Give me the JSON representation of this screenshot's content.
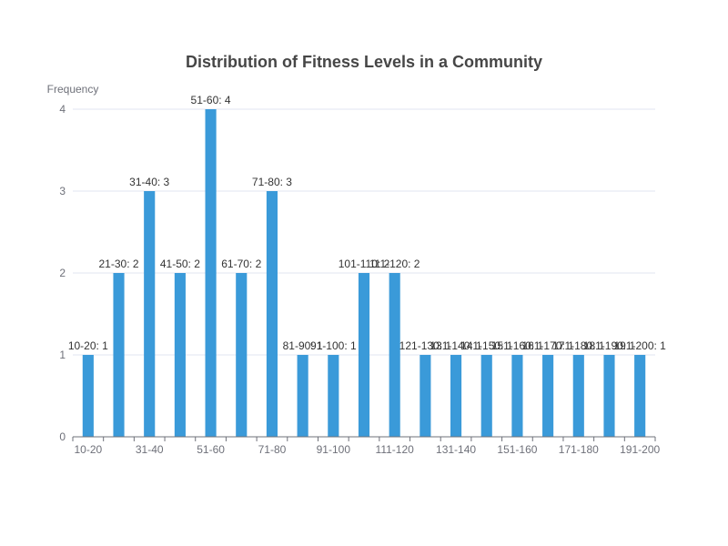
{
  "chart_data": {
    "type": "bar",
    "title": "Distribution of Fitness Levels in a Community",
    "xlabel": "",
    "ylabel": "Frequency",
    "ylim": [
      0,
      4
    ],
    "yticks": [
      0,
      1,
      2,
      3,
      4
    ],
    "grid": true,
    "bar_color": "#3a9ad9",
    "categories": [
      "10-20",
      "21-30",
      "31-40",
      "41-50",
      "51-60",
      "61-70",
      "71-80",
      "81-90",
      "91-100",
      "101-110",
      "111-120",
      "121-130",
      "131-140",
      "141-150",
      "151-160",
      "161-170",
      "171-180",
      "181-190",
      "191-200"
    ],
    "values": [
      1,
      2,
      3,
      2,
      4,
      2,
      3,
      1,
      1,
      2,
      2,
      1,
      1,
      1,
      1,
      1,
      1,
      1,
      1
    ],
    "visible_tick_labels": [
      "10-20",
      "31-40",
      "51-60",
      "71-80",
      "91-100",
      "111-120",
      "131-140",
      "151-160",
      "171-180",
      "191-200"
    ]
  }
}
